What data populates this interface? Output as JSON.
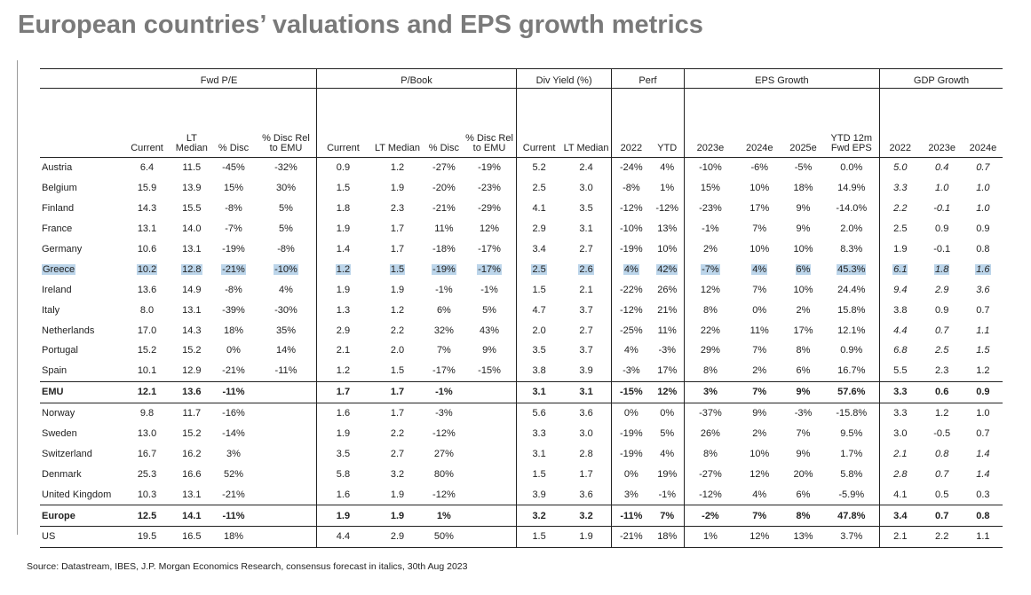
{
  "title": "European countries’ valuations and EPS growth metrics",
  "groups": {
    "fwd_pe": "Fwd P/E",
    "pbook": "P/Book",
    "div": "Div Yield (%)",
    "perf": "Perf",
    "eps": "EPS Growth",
    "gdp": "GDP Growth"
  },
  "columns": [
    "Current",
    "LT Median",
    "% Disc",
    "% Disc Rel to EMU",
    "Current",
    "LT Median",
    "% Disc",
    "% Disc Rel to EMU",
    "Current",
    "LT Median",
    "2022",
    "YTD",
    "2023e",
    "2024e",
    "2025e",
    "YTD 12m Fwd EPS",
    "2022",
    "2023e",
    "2024e"
  ],
  "rows": [
    {
      "name": "Austria",
      "cells": [
        "6.4",
        "11.5",
        "-45%",
        "-32%",
        "0.9",
        "1.2",
        "-27%",
        "-19%",
        "5.2",
        "2.4",
        "-24%",
        "4%",
        "-10%",
        "-6%",
        "-5%",
        "0.0%",
        "5.0",
        "0.4",
        "0.7"
      ],
      "italic": [
        16,
        17,
        18
      ]
    },
    {
      "name": "Belgium",
      "cells": [
        "15.9",
        "13.9",
        "15%",
        "30%",
        "1.5",
        "1.9",
        "-20%",
        "-23%",
        "2.5",
        "3.0",
        "-8%",
        "1%",
        "15%",
        "10%",
        "18%",
        "14.9%",
        "3.3",
        "1.0",
        "1.0"
      ],
      "italic": [
        16,
        17,
        18
      ]
    },
    {
      "name": "Finland",
      "cells": [
        "14.3",
        "15.5",
        "-8%",
        "5%",
        "1.8",
        "2.3",
        "-21%",
        "-29%",
        "4.1",
        "3.5",
        "-12%",
        "-12%",
        "-23%",
        "17%",
        "9%",
        "-14.0%",
        "2.2",
        "-0.1",
        "1.0"
      ],
      "italic": [
        16,
        17,
        18
      ]
    },
    {
      "name": "France",
      "cells": [
        "13.1",
        "14.0",
        "-7%",
        "5%",
        "1.9",
        "1.7",
        "11%",
        "12%",
        "2.9",
        "3.1",
        "-10%",
        "13%",
        "-1%",
        "7%",
        "9%",
        "2.0%",
        "2.5",
        "0.9",
        "0.9"
      ],
      "italic": []
    },
    {
      "name": "Germany",
      "cells": [
        "10.6",
        "13.1",
        "-19%",
        "-8%",
        "1.4",
        "1.7",
        "-18%",
        "-17%",
        "3.4",
        "2.7",
        "-19%",
        "10%",
        "2%",
        "10%",
        "10%",
        "8.3%",
        "1.9",
        "-0.1",
        "0.8"
      ],
      "italic": []
    },
    {
      "name": "Greece",
      "cells": [
        "10.2",
        "12.8",
        "-21%",
        "-10%",
        "1.2",
        "1.5",
        "-19%",
        "-17%",
        "2.5",
        "2.6",
        "4%",
        "42%",
        "-7%",
        "4%",
        "6%",
        "45.3%",
        "6.1",
        "1.8",
        "1.6"
      ],
      "italic": [
        16,
        17,
        18
      ],
      "highlight": true
    },
    {
      "name": "Ireland",
      "cells": [
        "13.6",
        "14.9",
        "-8%",
        "4%",
        "1.9",
        "1.9",
        "-1%",
        "-1%",
        "1.5",
        "2.1",
        "-22%",
        "26%",
        "12%",
        "7%",
        "10%",
        "24.4%",
        "9.4",
        "2.9",
        "3.6"
      ],
      "italic": [
        16,
        17,
        18
      ]
    },
    {
      "name": "Italy",
      "cells": [
        "8.0",
        "13.1",
        "-39%",
        "-30%",
        "1.3",
        "1.2",
        "6%",
        "5%",
        "4.7",
        "3.7",
        "-12%",
        "21%",
        "8%",
        "0%",
        "2%",
        "15.8%",
        "3.8",
        "0.9",
        "0.7"
      ],
      "italic": []
    },
    {
      "name": "Netherlands",
      "cells": [
        "17.0",
        "14.3",
        "18%",
        "35%",
        "2.9",
        "2.2",
        "32%",
        "43%",
        "2.0",
        "2.7",
        "-25%",
        "11%",
        "22%",
        "11%",
        "17%",
        "12.1%",
        "4.4",
        "0.7",
        "1.1"
      ],
      "italic": [
        16,
        17,
        18
      ]
    },
    {
      "name": "Portugal",
      "cells": [
        "15.2",
        "15.2",
        "0%",
        "14%",
        "2.1",
        "2.0",
        "7%",
        "9%",
        "3.5",
        "3.7",
        "4%",
        "-3%",
        "29%",
        "7%",
        "8%",
        "0.9%",
        "6.8",
        "2.5",
        "1.5"
      ],
      "italic": [
        16,
        17,
        18
      ]
    },
    {
      "name": "Spain",
      "cells": [
        "10.1",
        "12.9",
        "-21%",
        "-11%",
        "1.2",
        "1.5",
        "-17%",
        "-15%",
        "3.8",
        "3.9",
        "-3%",
        "17%",
        "8%",
        "2%",
        "6%",
        "16.7%",
        "5.5",
        "2.3",
        "1.2"
      ],
      "italic": []
    },
    {
      "name": "EMU",
      "cells": [
        "12.1",
        "13.6",
        "-11%",
        "",
        "1.7",
        "1.7",
        "-1%",
        "",
        "3.1",
        "3.1",
        "-15%",
        "12%",
        "3%",
        "7%",
        "9%",
        "57.6%",
        "3.3",
        "0.6",
        "0.9"
      ],
      "italic": [],
      "bold": true
    },
    {
      "name": "Norway",
      "cells": [
        "9.8",
        "11.7",
        "-16%",
        "",
        "1.6",
        "1.7",
        "-3%",
        "",
        "5.6",
        "3.6",
        "0%",
        "0%",
        "-37%",
        "9%",
        "-3%",
        "-15.8%",
        "3.3",
        "1.2",
        "1.0"
      ],
      "italic": []
    },
    {
      "name": "Sweden",
      "cells": [
        "13.0",
        "15.2",
        "-14%",
        "",
        "1.9",
        "2.2",
        "-12%",
        "",
        "3.3",
        "3.0",
        "-19%",
        "5%",
        "26%",
        "2%",
        "7%",
        "9.5%",
        "3.0",
        "-0.5",
        "0.7"
      ],
      "italic": []
    },
    {
      "name": "Switzerland",
      "cells": [
        "16.7",
        "16.2",
        "3%",
        "",
        "3.5",
        "2.7",
        "27%",
        "",
        "3.1",
        "2.8",
        "-19%",
        "4%",
        "8%",
        "10%",
        "9%",
        "1.7%",
        "2.1",
        "0.8",
        "1.4"
      ],
      "italic": [
        16,
        17,
        18
      ]
    },
    {
      "name": "Denmark",
      "cells": [
        "25.3",
        "16.6",
        "52%",
        "",
        "5.8",
        "3.2",
        "80%",
        "",
        "1.5",
        "1.7",
        "0%",
        "19%",
        "-27%",
        "12%",
        "20%",
        "5.8%",
        "2.8",
        "0.7",
        "1.4"
      ],
      "italic": [
        16,
        17,
        18
      ]
    },
    {
      "name": "United Kingdom",
      "cells": [
        "10.3",
        "13.1",
        "-21%",
        "",
        "1.6",
        "1.9",
        "-12%",
        "",
        "3.9",
        "3.6",
        "3%",
        "-1%",
        "-12%",
        "4%",
        "6%",
        "-5.9%",
        "4.1",
        "0.5",
        "0.3"
      ],
      "italic": []
    },
    {
      "name": "Europe",
      "cells": [
        "12.5",
        "14.1",
        "-11%",
        "",
        "1.9",
        "1.9",
        "1%",
        "",
        "3.2",
        "3.2",
        "-11%",
        "7%",
        "-2%",
        "7%",
        "8%",
        "47.8%",
        "3.4",
        "0.7",
        "0.8"
      ],
      "italic": [],
      "bold": true
    },
    {
      "name": "US",
      "cells": [
        "19.5",
        "16.5",
        "18%",
        "",
        "4.4",
        "2.9",
        "50%",
        "",
        "1.5",
        "1.9",
        "-21%",
        "18%",
        "1%",
        "12%",
        "13%",
        "3.7%",
        "2.1",
        "2.2",
        "1.1"
      ],
      "italic": []
    }
  ],
  "source": "Source: Datastream, IBES, J.P. Morgan Economics Research, consensus forecast in italics, 30th Aug 2023"
}
